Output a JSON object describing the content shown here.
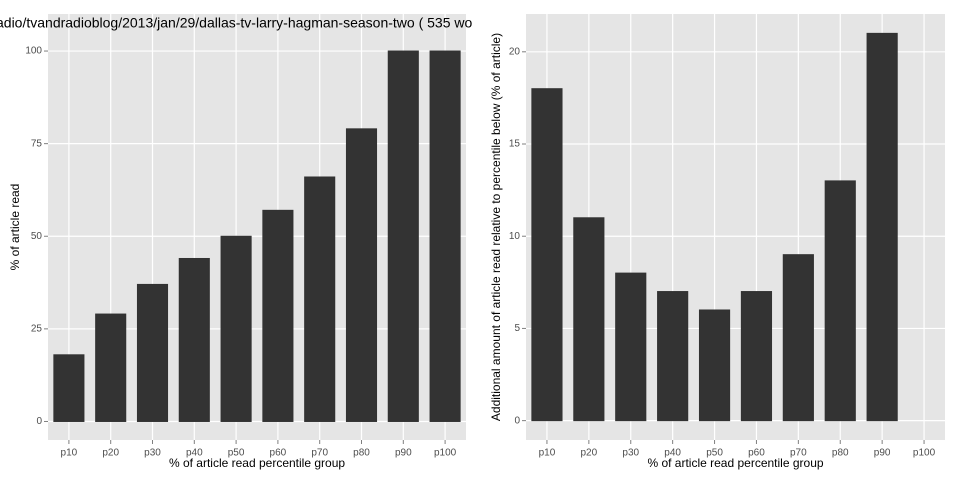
{
  "chart_data": [
    {
      "type": "bar",
      "title": "adio/tvandradioblog/2013/jan/29/dallas-tv-larry-hagman-season-two ( 535 wo",
      "x_label": "% of article read percentile group",
      "y_label": "% of article read",
      "categories": [
        "p10",
        "p20",
        "p30",
        "p40",
        "p50",
        "p60",
        "p70",
        "p80",
        "p90",
        "p100"
      ],
      "values": [
        18,
        29,
        37,
        44,
        50,
        57,
        66,
        79,
        100,
        100
      ],
      "color": "#333333",
      "ylim": [
        -5,
        110
      ],
      "yticks": [
        0,
        25,
        50,
        75,
        100
      ],
      "grid": true
    },
    {
      "type": "bar",
      "x_label": "% of article read percentile group",
      "y_label": "Additional amount of article read relative to percentile below (% of article)",
      "categories": [
        "p10",
        "p20",
        "p30",
        "p40",
        "p50",
        "p60",
        "p70",
        "p80",
        "p90",
        "p100"
      ],
      "values": [
        18,
        11,
        8,
        7,
        6,
        7,
        9,
        13,
        21,
        0
      ],
      "color": "#333333",
      "ylim": [
        -1.05,
        22.05
      ],
      "yticks": [
        0,
        5,
        10,
        15,
        20
      ],
      "grid": true
    }
  ]
}
